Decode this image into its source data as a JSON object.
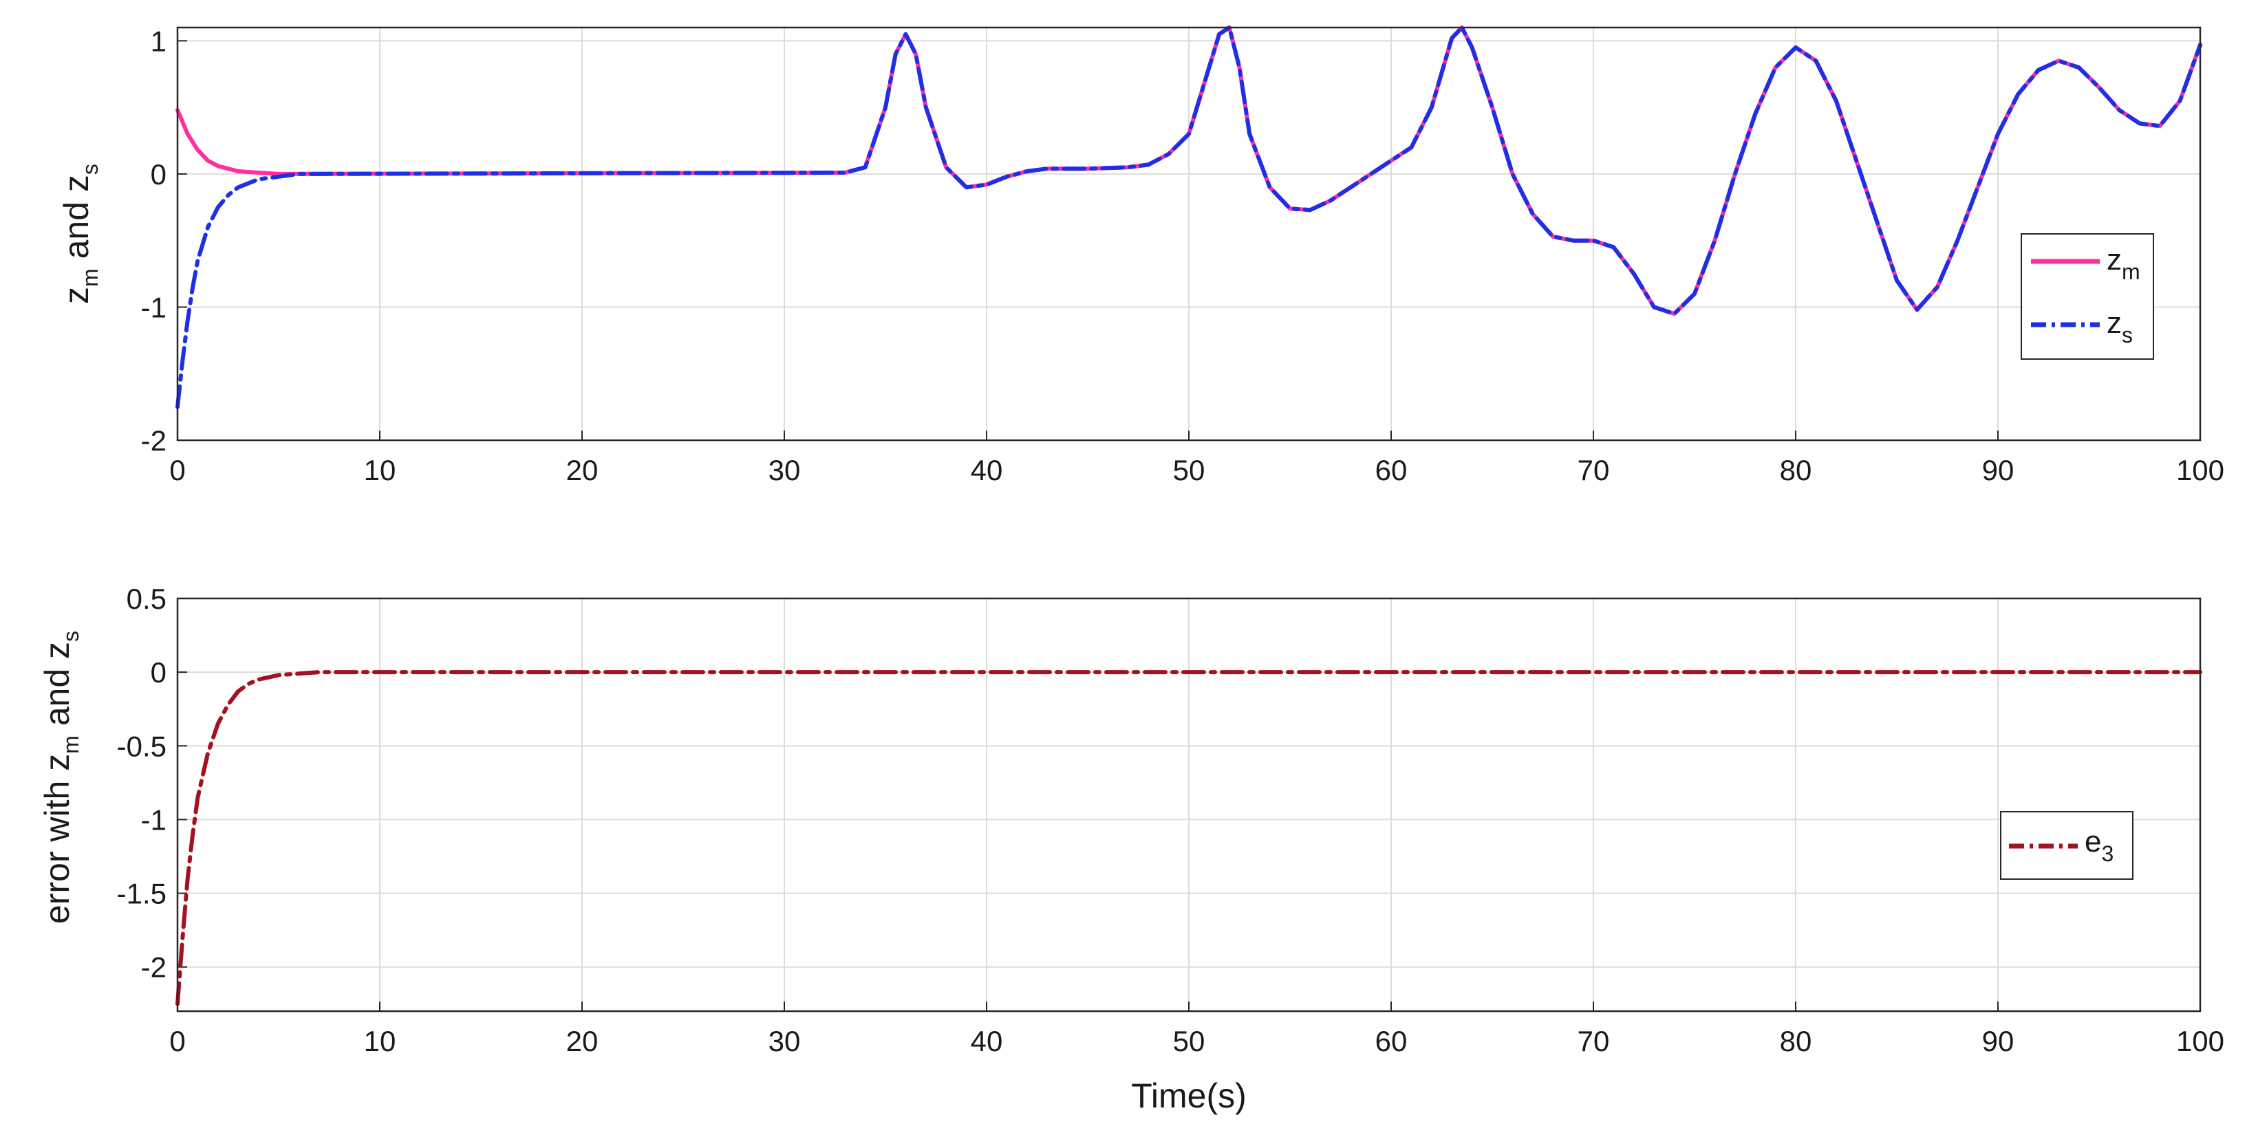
{
  "chart_data": [
    {
      "type": "line",
      "ylabel": {
        "base1": "z",
        "sub1": "m",
        "mid": " and z",
        "sub2": "s"
      },
      "xlim": [
        0,
        100
      ],
      "ylim": [
        -2,
        1.1
      ],
      "xticks": [
        "0",
        "10",
        "20",
        "30",
        "40",
        "50",
        "60",
        "70",
        "80",
        "90",
        "100"
      ],
      "yticks": [
        "-2",
        "-1",
        "0",
        "1"
      ],
      "grid": true,
      "legend_position": "right",
      "series": [
        {
          "name": {
            "base": "z",
            "sub": "m"
          },
          "color": "#ff2fa0",
          "style": "solid",
          "x": [
            0,
            0.5,
            1,
            1.5,
            2,
            3,
            4,
            5,
            33,
            34,
            35,
            35.5,
            36,
            36.5,
            37,
            38,
            39,
            40,
            41,
            42,
            43,
            45,
            47,
            48,
            49,
            50,
            51,
            51.5,
            52,
            52.5,
            53,
            54,
            55,
            56,
            57,
            58,
            59,
            60,
            61,
            62,
            63,
            63.5,
            64,
            65,
            66,
            67,
            68,
            69,
            70,
            71,
            72,
            73,
            74,
            75,
            76,
            77,
            78,
            79,
            80,
            81,
            82,
            83,
            84,
            85,
            86,
            87,
            88,
            89,
            90,
            91,
            92,
            93,
            94,
            95,
            96,
            97,
            98,
            99,
            100
          ],
          "y": [
            0.48,
            0.3,
            0.18,
            0.1,
            0.06,
            0.02,
            0.01,
            0,
            0.01,
            0.05,
            0.5,
            0.9,
            1.05,
            0.9,
            0.5,
            0.05,
            -0.1,
            -0.08,
            -0.02,
            0.02,
            0.04,
            0.04,
            0.05,
            0.07,
            0.15,
            0.3,
            0.8,
            1.05,
            1.1,
            0.8,
            0.3,
            -0.1,
            -0.26,
            -0.27,
            -0.2,
            -0.1,
            0,
            0.1,
            0.2,
            0.5,
            1.02,
            1.1,
            0.95,
            0.5,
            0,
            -0.3,
            -0.47,
            -0.5,
            -0.5,
            -0.55,
            -0.75,
            -1.0,
            -1.05,
            -0.9,
            -0.5,
            0,
            0.45,
            0.8,
            0.95,
            0.85,
            0.55,
            0.1,
            -0.35,
            -0.8,
            -1.02,
            -0.85,
            -0.5,
            -0.1,
            0.3,
            0.6,
            0.78,
            0.85,
            0.8,
            0.65,
            0.48,
            0.38,
            0.36,
            0.55,
            0.97
          ]
        },
        {
          "name": {
            "base": "z",
            "sub": "s"
          },
          "color": "#1f2fe6",
          "style": "dash-dot",
          "x": [
            0,
            0.25,
            0.5,
            0.75,
            1,
            1.5,
            2,
            2.5,
            3,
            4,
            5,
            6,
            33,
            34,
            35,
            35.5,
            36,
            36.5,
            37,
            38,
            39,
            40,
            41,
            42,
            43,
            45,
            47,
            48,
            49,
            50,
            51,
            51.5,
            52,
            52.5,
            53,
            54,
            55,
            56,
            57,
            58,
            59,
            60,
            61,
            62,
            63,
            63.5,
            64,
            65,
            66,
            67,
            68,
            69,
            70,
            71,
            72,
            73,
            74,
            75,
            76,
            77,
            78,
            79,
            80,
            81,
            82,
            83,
            84,
            85,
            86,
            87,
            88,
            89,
            90,
            91,
            92,
            93,
            94,
            95,
            96,
            97,
            98,
            99,
            100
          ],
          "y": [
            -1.75,
            -1.4,
            -1.1,
            -0.85,
            -0.65,
            -0.4,
            -0.25,
            -0.16,
            -0.1,
            -0.04,
            -0.02,
            0,
            0.01,
            0.05,
            0.5,
            0.9,
            1.05,
            0.9,
            0.5,
            0.05,
            -0.1,
            -0.08,
            -0.02,
            0.02,
            0.04,
            0.04,
            0.05,
            0.07,
            0.15,
            0.3,
            0.8,
            1.05,
            1.1,
            0.8,
            0.3,
            -0.1,
            -0.26,
            -0.27,
            -0.2,
            -0.1,
            0,
            0.1,
            0.2,
            0.5,
            1.02,
            1.1,
            0.95,
            0.5,
            0,
            -0.3,
            -0.47,
            -0.5,
            -0.5,
            -0.55,
            -0.75,
            -1.0,
            -1.05,
            -0.9,
            -0.5,
            0,
            0.45,
            0.8,
            0.95,
            0.85,
            0.55,
            0.1,
            -0.35,
            -0.8,
            -1.02,
            -0.85,
            -0.5,
            -0.1,
            0.3,
            0.6,
            0.78,
            0.85,
            0.8,
            0.65,
            0.48,
            0.38,
            0.36,
            0.55,
            0.97
          ]
        }
      ]
    },
    {
      "type": "line",
      "xlabel": "Time(s)",
      "ylabel": {
        "prefix": "error with z",
        "sub1": "m",
        "mid": " and z",
        "sub2": "s"
      },
      "xlim": [
        0,
        100
      ],
      "ylim": [
        -2.3,
        0.5
      ],
      "xticks": [
        "0",
        "10",
        "20",
        "30",
        "40",
        "50",
        "60",
        "70",
        "80",
        "90",
        "100"
      ],
      "yticks": [
        "-2",
        "-1.5",
        "-1",
        "-0.5",
        "0",
        "0.5"
      ],
      "grid": true,
      "legend_position": "right",
      "series": [
        {
          "name": {
            "base": "e",
            "sub": "3"
          },
          "color": "#a3121f",
          "style": "dash-dot",
          "x": [
            0,
            0.25,
            0.5,
            0.75,
            1,
            1.5,
            2,
            2.5,
            3,
            3.5,
            4,
            5,
            6,
            7,
            100
          ],
          "y": [
            -2.25,
            -1.8,
            -1.4,
            -1.1,
            -0.85,
            -0.55,
            -0.35,
            -0.22,
            -0.13,
            -0.08,
            -0.05,
            -0.02,
            -0.01,
            0,
            0
          ]
        }
      ]
    }
  ]
}
